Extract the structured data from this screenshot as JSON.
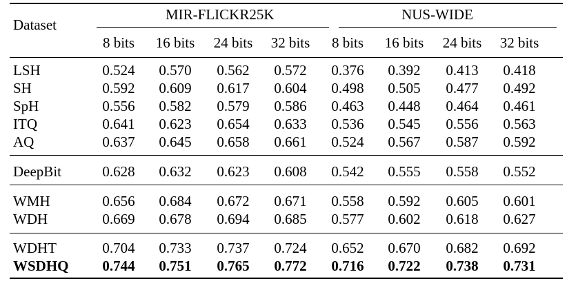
{
  "table": {
    "row_header_label": "Dataset",
    "groups": [
      {
        "name": "MIR-FLICKR25K",
        "columns": [
          "8 bits",
          "16 bits",
          "24 bits",
          "32 bits"
        ]
      },
      {
        "name": "NUS-WIDE",
        "columns": [
          "8 bits",
          "16 bits",
          "24 bits",
          "32 bits"
        ]
      }
    ],
    "sections": [
      {
        "rows": [
          {
            "method": "LSH",
            "values": [
              "0.524",
              "0.570",
              "0.562",
              "0.572",
              "0.376",
              "0.392",
              "0.413",
              "0.418"
            ]
          },
          {
            "method": "SH",
            "values": [
              "0.592",
              "0.609",
              "0.617",
              "0.604",
              "0.498",
              "0.505",
              "0.477",
              "0.492"
            ]
          },
          {
            "method": "SpH",
            "values": [
              "0.556",
              "0.582",
              "0.579",
              "0.586",
              "0.463",
              "0.448",
              "0.464",
              "0.461"
            ]
          },
          {
            "method": "ITQ",
            "values": [
              "0.641",
              "0.623",
              "0.654",
              "0.633",
              "0.536",
              "0.545",
              "0.556",
              "0.563"
            ]
          },
          {
            "method": "AQ",
            "values": [
              "0.637",
              "0.645",
              "0.658",
              "0.661",
              "0.524",
              "0.567",
              "0.587",
              "0.592"
            ]
          }
        ]
      },
      {
        "rows": [
          {
            "method": "DeepBit",
            "values": [
              "0.628",
              "0.632",
              "0.623",
              "0.608",
              "0.542",
              "0.555",
              "0.558",
              "0.552"
            ]
          }
        ]
      },
      {
        "rows": [
          {
            "method": "WMH",
            "values": [
              "0.656",
              "0.684",
              "0.672",
              "0.671",
              "0.558",
              "0.592",
              "0.605",
              "0.601"
            ]
          },
          {
            "method": "WDH",
            "values": [
              "0.669",
              "0.678",
              "0.694",
              "0.685",
              "0.577",
              "0.602",
              "0.618",
              "0.627"
            ]
          }
        ]
      },
      {
        "rows": [
          {
            "method": "WDHT",
            "values": [
              "0.704",
              "0.733",
              "0.737",
              "0.724",
              "0.652",
              "0.670",
              "0.682",
              "0.692"
            ]
          },
          {
            "method": "WSDHQ",
            "bold": true,
            "values": [
              "0.744",
              "0.751",
              "0.765",
              "0.772",
              "0.716",
              "0.722",
              "0.738",
              "0.731"
            ]
          }
        ]
      }
    ]
  }
}
